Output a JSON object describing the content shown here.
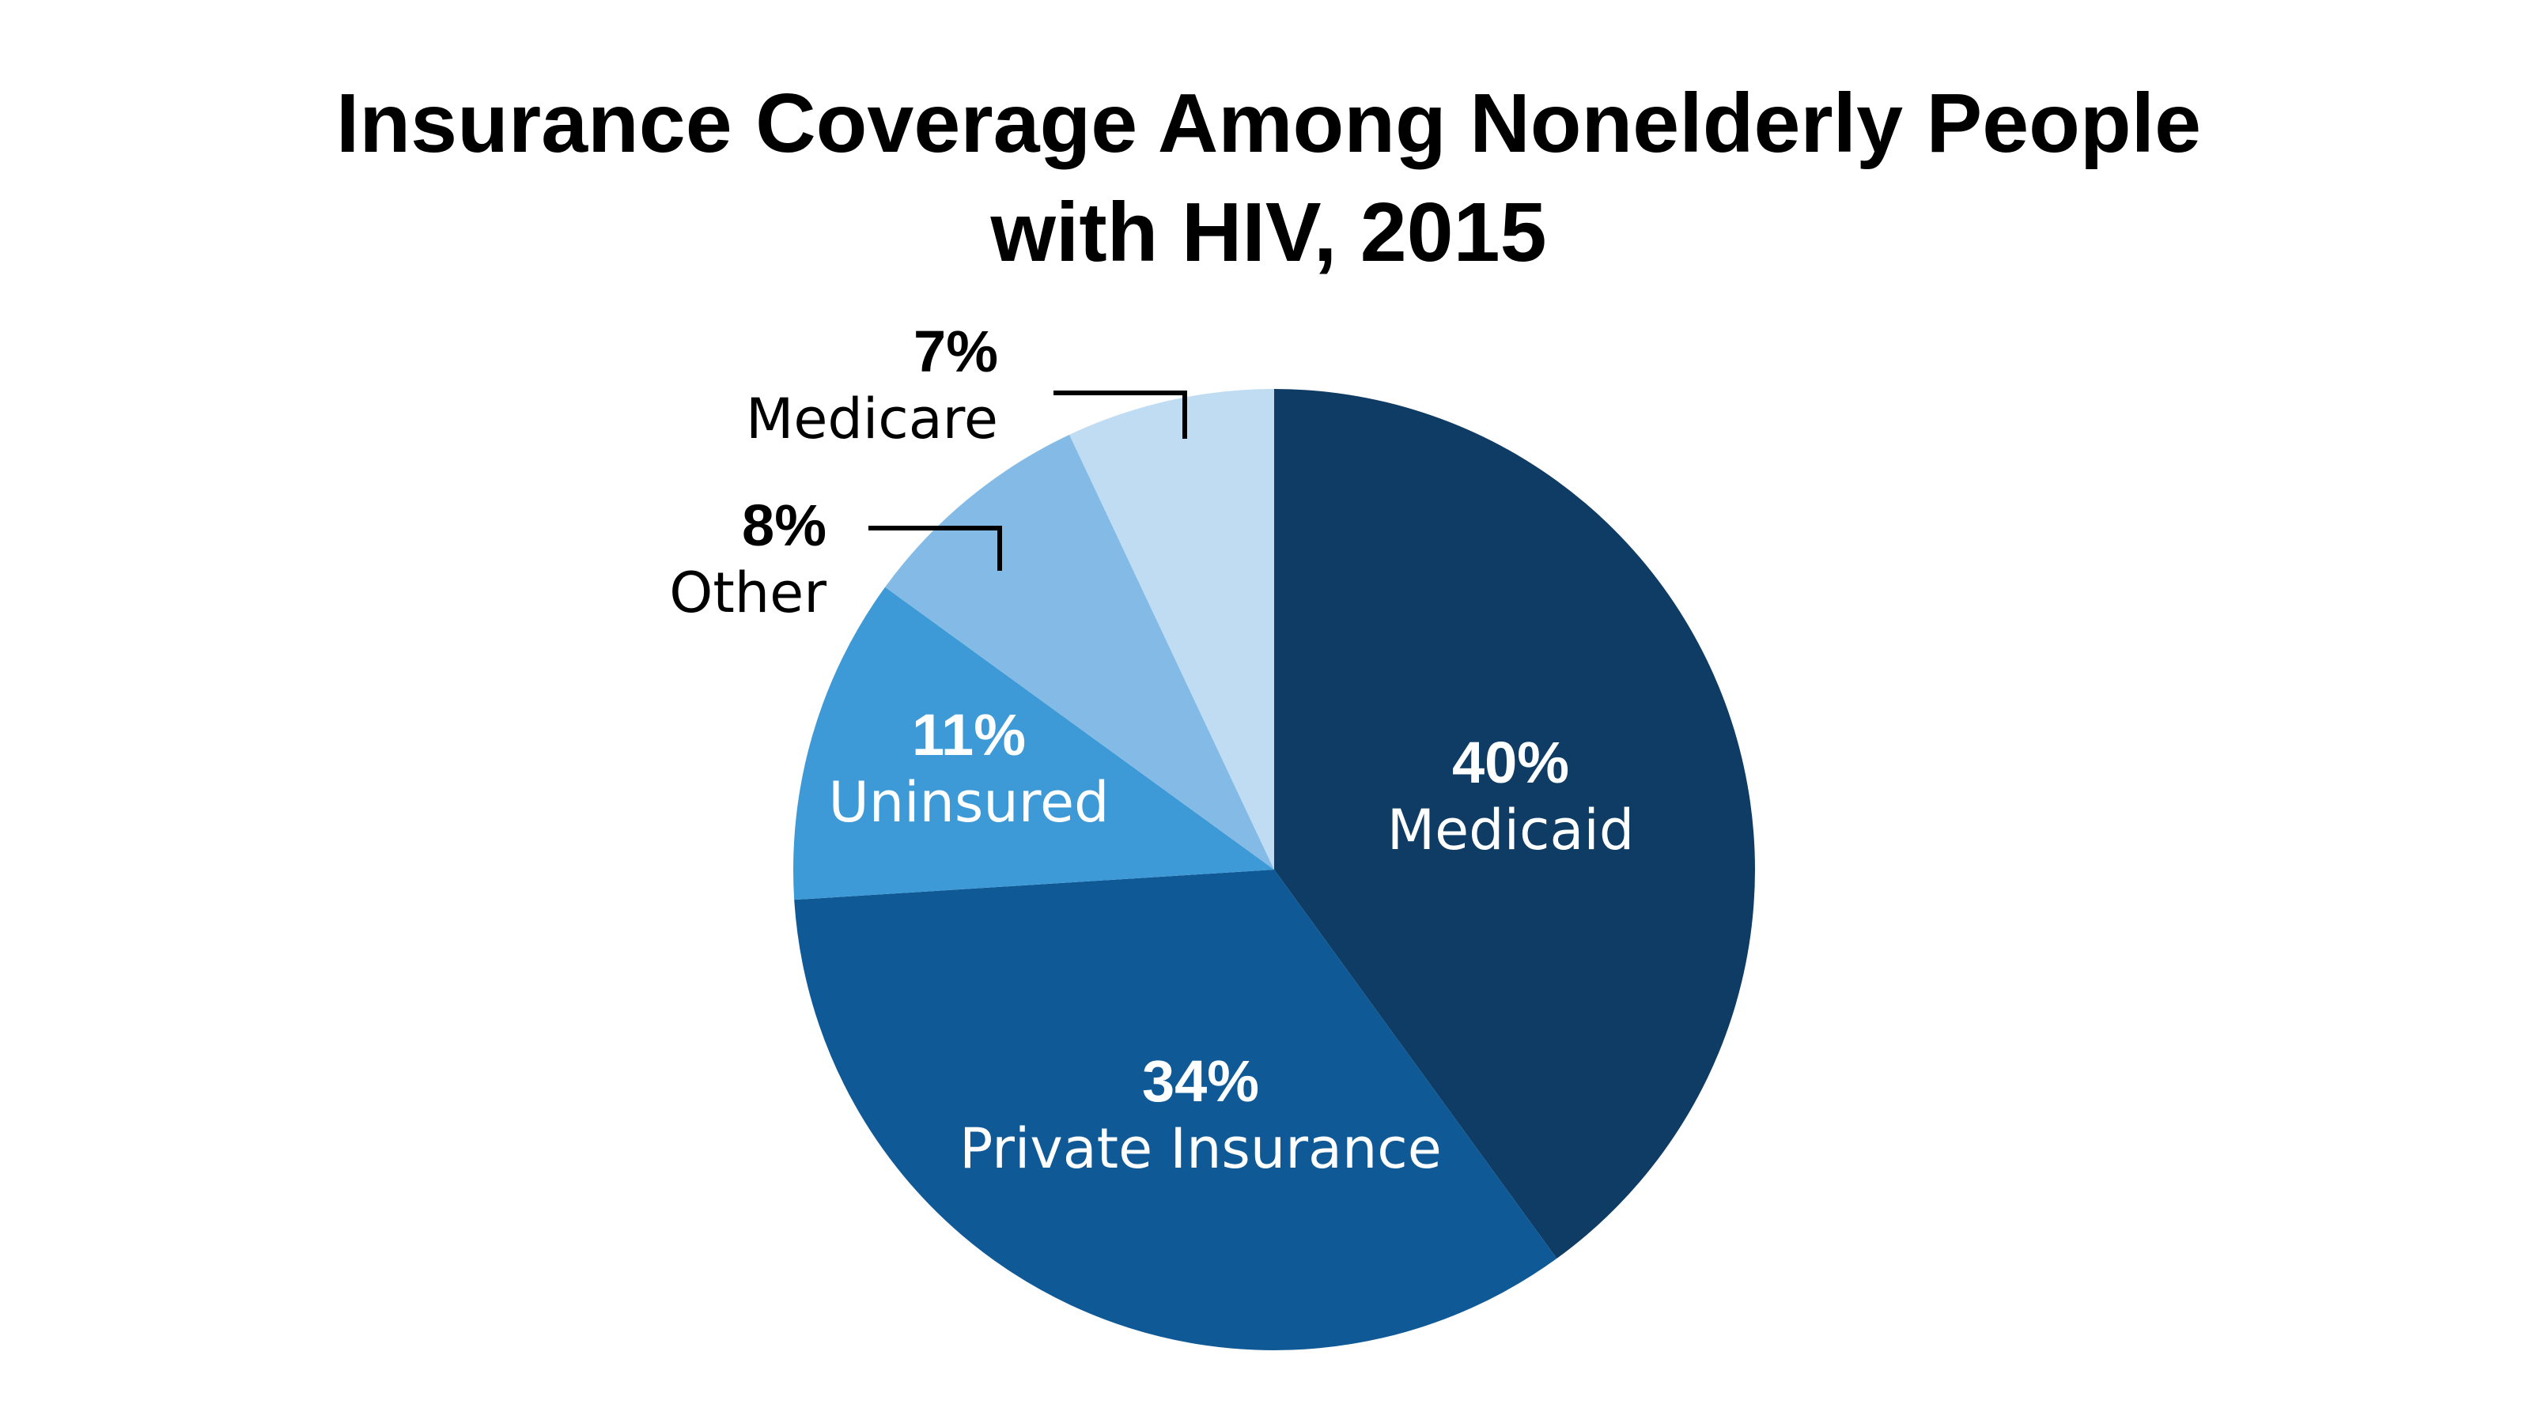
{
  "chart_data": {
    "type": "pie",
    "title": "Insurance Coverage Among Nonelderly People with HIV, 2015",
    "title_lines": [
      "Insurance Coverage Among Nonelderly People",
      "with HIV, 2015"
    ],
    "slices": [
      {
        "name": "Medicaid",
        "value": 40,
        "label": "40%",
        "color": "#0e3c64",
        "label_color": "#ffffff"
      },
      {
        "name": "Private Insurance",
        "value": 34,
        "label": "34%",
        "color": "#0f5a96",
        "label_color": "#ffffff"
      },
      {
        "name": "Uninsured",
        "value": 11,
        "label": "11%",
        "color": "#3d9ad6",
        "label_color": "#ffffff"
      },
      {
        "name": "Other",
        "value": 8,
        "label": "8%",
        "color": "#84bbe6",
        "label_color": "#000000"
      },
      {
        "name": "Medicare",
        "value": 7,
        "label": "7%",
        "color": "#bfdcf3",
        "label_color": "#000000"
      }
    ],
    "start_angle": "12 o'clock",
    "direction": "clockwise",
    "legend": "none",
    "grid": false
  }
}
